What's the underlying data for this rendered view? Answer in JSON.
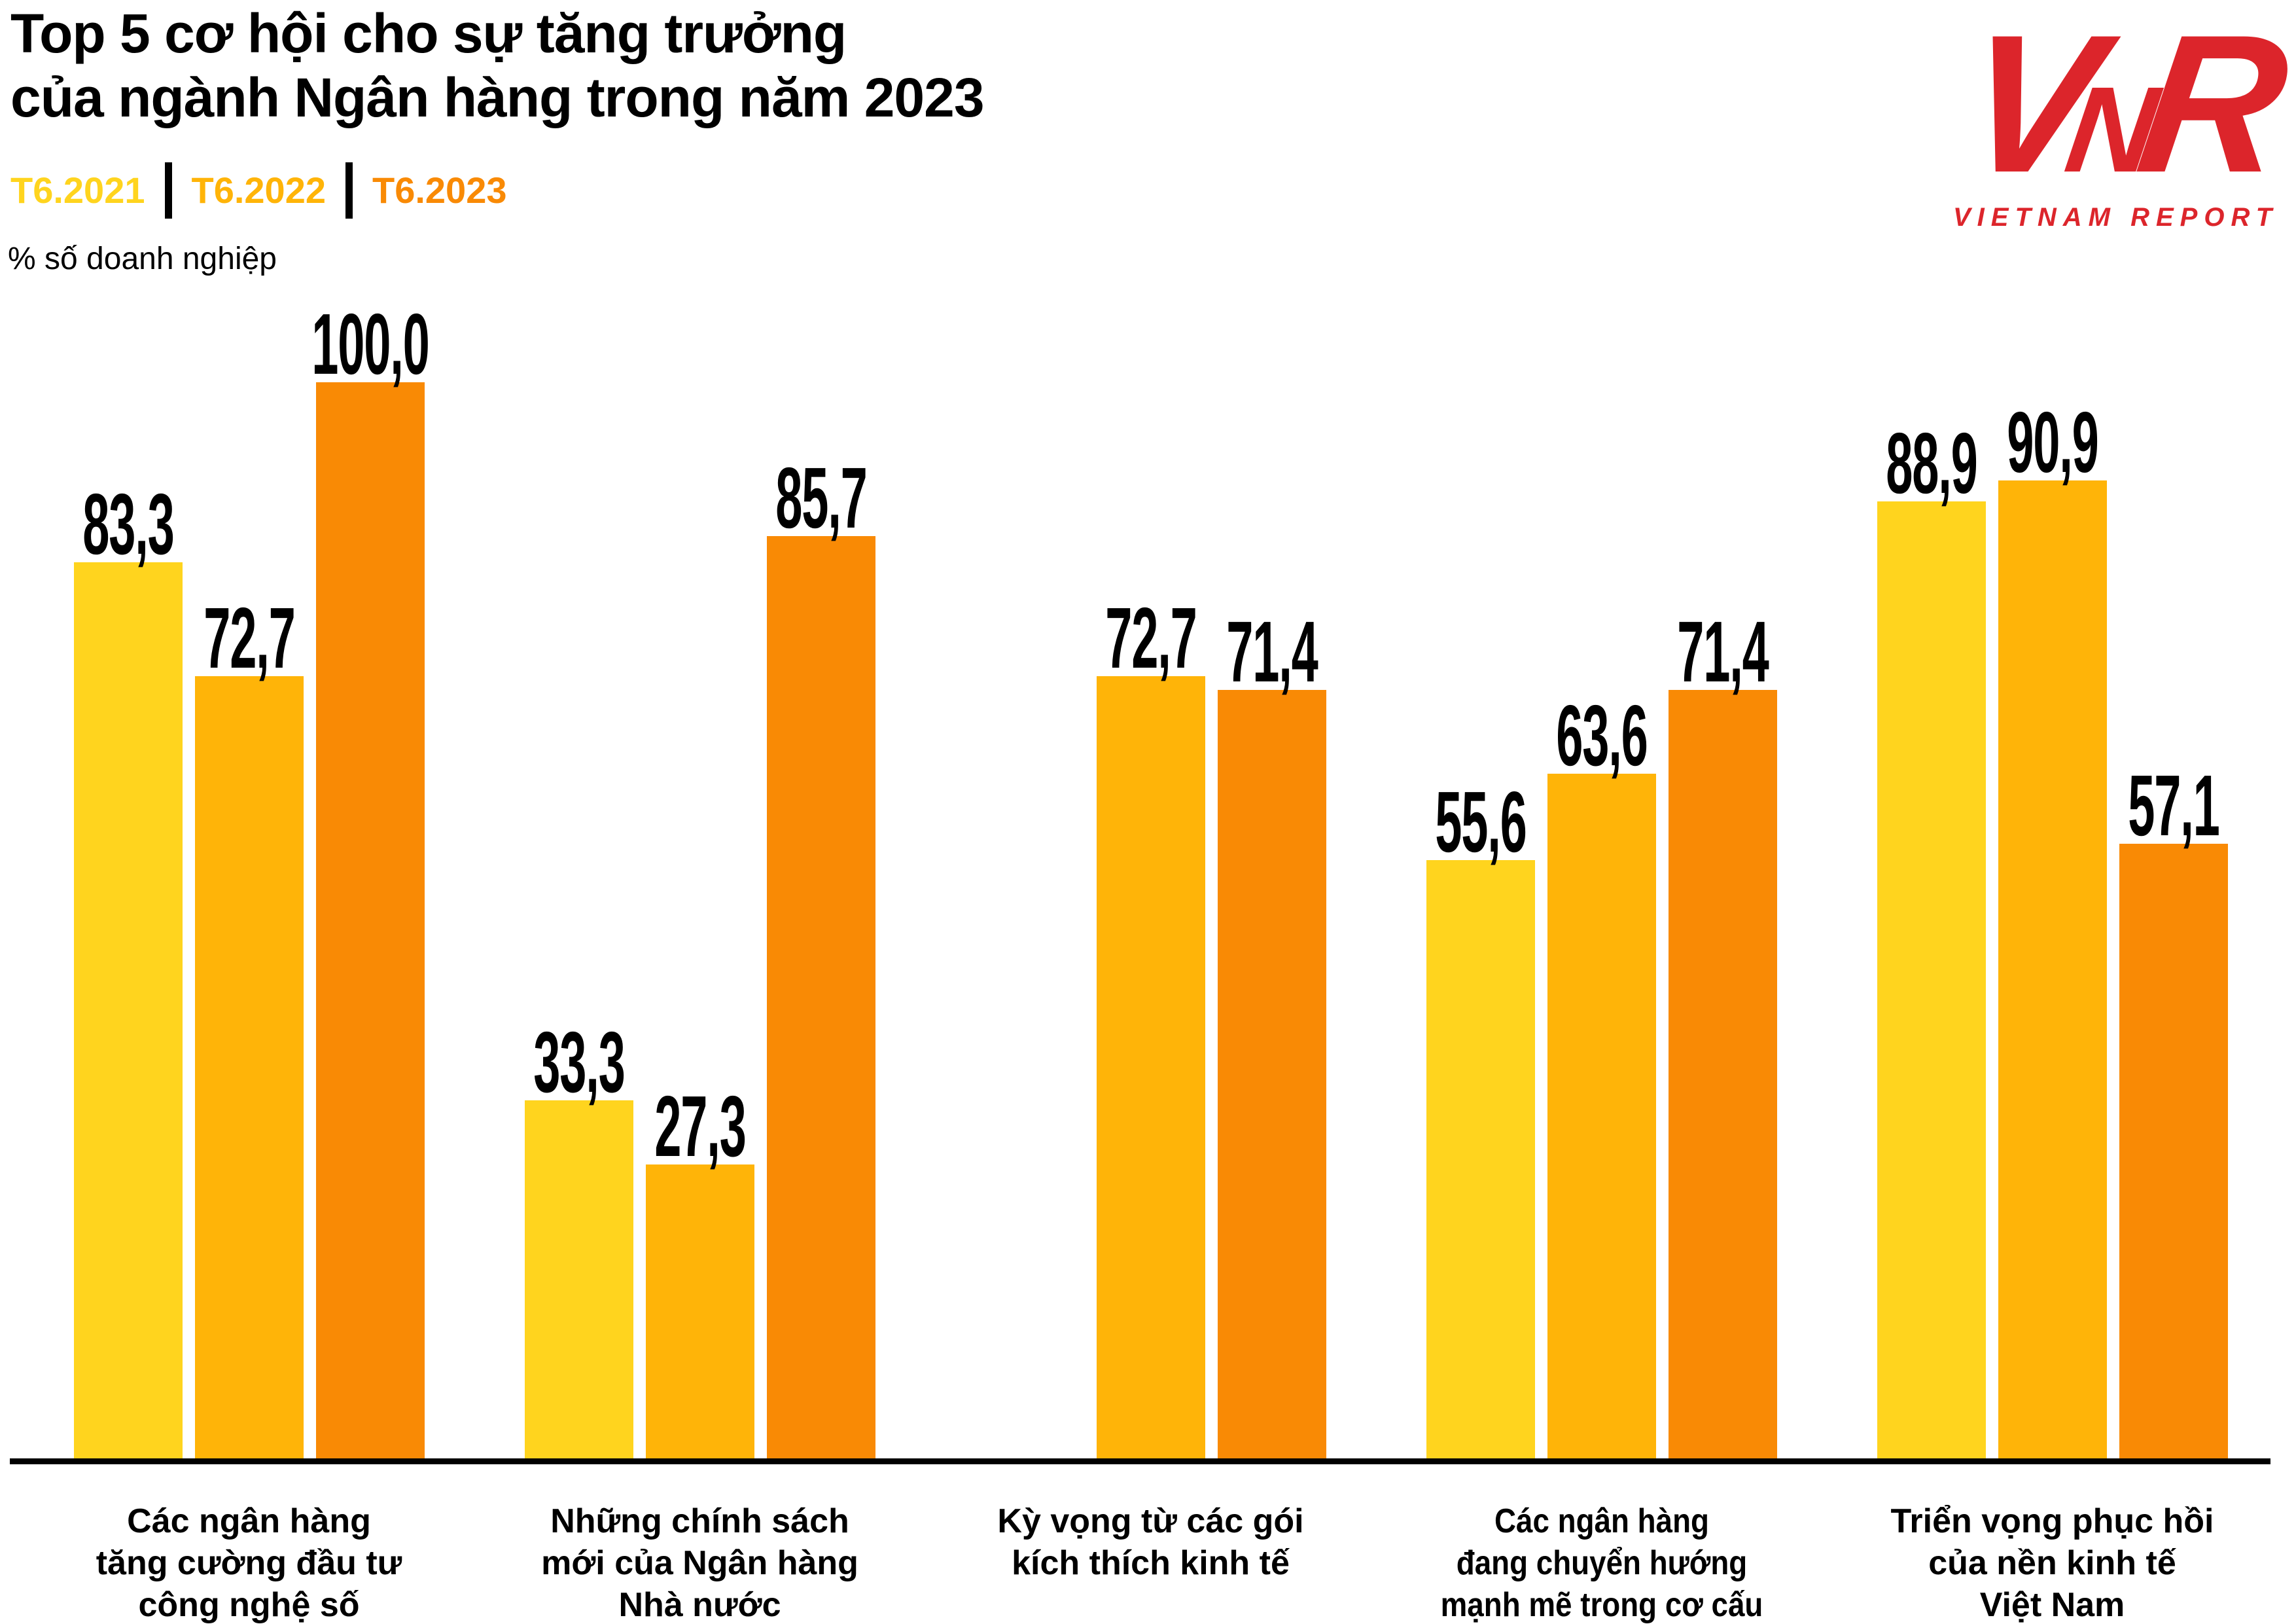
{
  "header": {
    "title": "Top 5 cơ hội cho sự tăng trưởng\ncủa ngành Ngân hàng trong năm 2023",
    "unit_label": "% số doanh nghiệp"
  },
  "logo": {
    "mark_v": "V",
    "mark_n": "N",
    "mark_r": "R",
    "text": "VIETNAM REPORT",
    "color": "#DC252B"
  },
  "colors": {
    "series_2021": "#FFD41E",
    "series_2022": "#FFB408",
    "series_2023": "#F98A05",
    "axis": "#000000",
    "text": "#000000"
  },
  "chart_data": {
    "type": "bar",
    "title": "Top 5 cơ hội cho sự tăng trưởng của ngành Ngân hàng trong năm 2023",
    "ylabel": "% số doanh nghiệp",
    "ylim": [
      0,
      100
    ],
    "grid": false,
    "legend_position": "top-left",
    "decimal_separator": ",",
    "series_names": [
      "T6.2021",
      "T6.2022",
      "T6.2023"
    ],
    "legend": [
      {
        "label": "T6.2021",
        "color": "#FFD41E"
      },
      {
        "label": "T6.2022",
        "color": "#FFB408"
      },
      {
        "label": "T6.2023",
        "color": "#F98A05"
      }
    ],
    "categories": [
      {
        "label": "Các ngân hàng tăng cường đầu tư công nghệ số",
        "label_lines": [
          "Các ngân hàng",
          "tăng cường đầu tư",
          "công nghệ số"
        ],
        "values": [
          83.3,
          72.7,
          100.0
        ],
        "value_labels": [
          "83,3",
          "72,7",
          "100,0"
        ]
      },
      {
        "label": "Những chính sách mới của Ngân hàng Nhà nước",
        "label_lines": [
          "Những chính sách",
          "mới của Ngân hàng",
          "Nhà nước"
        ],
        "values": [
          33.3,
          27.3,
          85.7
        ],
        "value_labels": [
          "33,3",
          "27,3",
          "85,7"
        ]
      },
      {
        "label": "Kỳ vọng từ các gói kích thích kinh tế",
        "label_lines": [
          "Kỳ vọng từ các gói",
          "kích thích kinh tế"
        ],
        "values": [
          null,
          72.7,
          71.4
        ],
        "value_labels": [
          null,
          "72,7",
          "71,4"
        ]
      },
      {
        "label": "Các ngân hàng đang chuyển hướng mạnh mẽ trong cơ cấu",
        "label_lines": [
          "Các ngân hàng",
          "đang chuyển hướng",
          "mạnh mẽ trong cơ cấu"
        ],
        "values": [
          55.6,
          63.6,
          71.4
        ],
        "value_labels": [
          "55,6",
          "63,6",
          "71,4"
        ]
      },
      {
        "label": "Triển vọng phục hồi của nền kinh tế Việt Nam",
        "label_lines": [
          "Triển vọng phục hồi",
          "của nền kinh tế",
          "Việt Nam"
        ],
        "values": [
          88.9,
          90.9,
          57.1
        ],
        "value_labels": [
          "88,9",
          "90,9",
          "57,1"
        ]
      }
    ]
  }
}
